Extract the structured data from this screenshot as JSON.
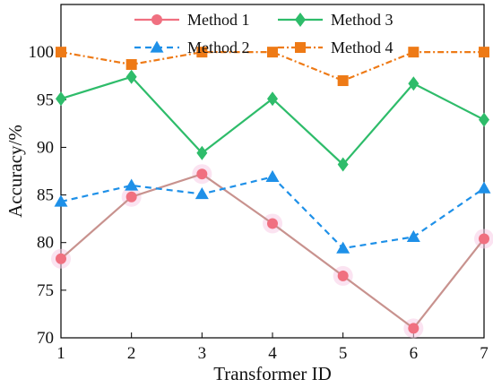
{
  "chart_data": {
    "type": "line",
    "xlabel": "Transformer ID",
    "ylabel": "Accuracy/%",
    "x": [
      1,
      2,
      3,
      4,
      5,
      6,
      7
    ],
    "xlim": [
      1,
      7
    ],
    "ylim": [
      70,
      105
    ],
    "xticks": [
      "1",
      "2",
      "3",
      "4",
      "5",
      "6",
      "7"
    ],
    "yticks": [
      "70",
      "75",
      "80",
      "85",
      "90",
      "95",
      "100"
    ],
    "grid": false,
    "legend_position": "top-center",
    "series": [
      {
        "name": "Method 1",
        "values": [
          78.3,
          84.8,
          87.2,
          82.0,
          76.5,
          71.0,
          80.4
        ],
        "color": "#f07080",
        "line_color": "#c8928e",
        "marker": "circle",
        "line_style": "solid"
      },
      {
        "name": "Method 2",
        "values": [
          84.3,
          86.0,
          85.1,
          86.9,
          79.4,
          80.6,
          85.7
        ],
        "color": "#1e90e8",
        "marker": "triangle",
        "line_style": "dashed"
      },
      {
        "name": "Method 3",
        "values": [
          95.1,
          97.4,
          89.4,
          95.1,
          88.2,
          96.7,
          92.9
        ],
        "color": "#2ebc6a",
        "marker": "diamond",
        "line_style": "solid"
      },
      {
        "name": "Method 4",
        "values": [
          100.0,
          98.7,
          100.0,
          100.0,
          97.0,
          100.0,
          100.0
        ],
        "color": "#ee7a16",
        "marker": "square",
        "line_style": "dashdot"
      }
    ]
  }
}
